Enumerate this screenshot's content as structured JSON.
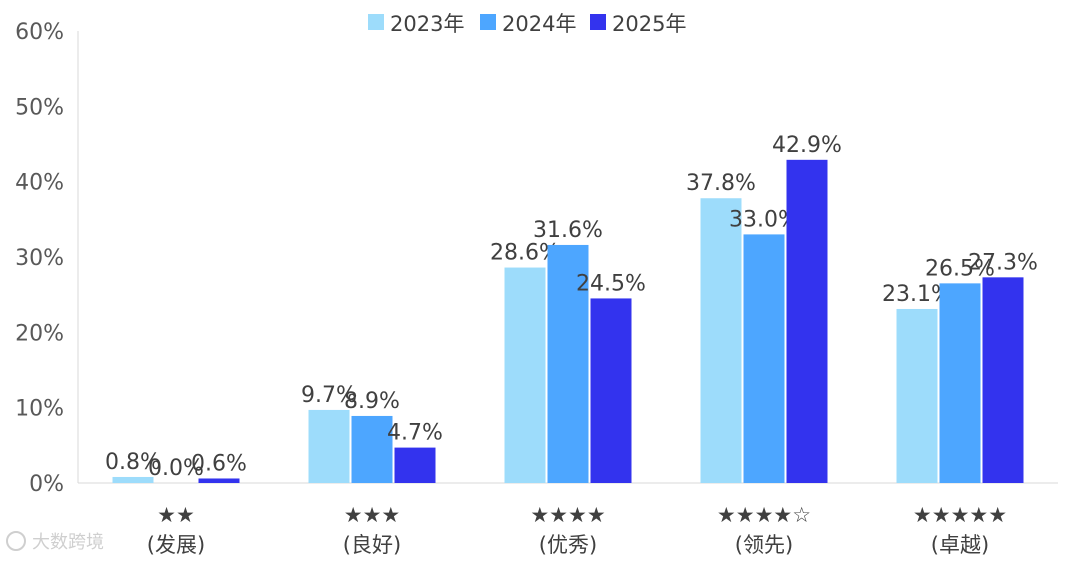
{
  "chart_data": {
    "type": "bar",
    "categories": [
      {
        "stars": "★★",
        "name": "(发展)"
      },
      {
        "stars": "★★★",
        "name": "(良好)"
      },
      {
        "stars": "★★★★",
        "name": "(优秀)"
      },
      {
        "stars": "★★★★☆",
        "name": "(领先)"
      },
      {
        "stars": "★★★★★",
        "name": "(卓越)"
      }
    ],
    "series": [
      {
        "name": "2023年",
        "color": "#9ddcfb",
        "values": [
          0.8,
          9.7,
          28.6,
          37.8,
          23.1
        ],
        "labels": [
          "0.8%",
          "9.7%",
          "28.6%",
          "37.8%",
          "23.1%"
        ]
      },
      {
        "name": "2024年",
        "color": "#4da6ff",
        "values": [
          0.0,
          8.9,
          31.6,
          33.0,
          26.5
        ],
        "labels": [
          "0.0%",
          "8.9%",
          "31.6%",
          "33.0%",
          "26.5%"
        ]
      },
      {
        "name": "2025年",
        "color": "#3333ee",
        "values": [
          0.6,
          4.7,
          24.5,
          42.9,
          27.3
        ],
        "labels": [
          "0.6%",
          "4.7%",
          "24.5%",
          "42.9%",
          "27.3%"
        ]
      }
    ],
    "ylim": [
      0,
      60
    ],
    "yticks": [
      "0%",
      "10%",
      "20%",
      "30%",
      "40%",
      "50%",
      "60%"
    ],
    "legend_position": "top",
    "grid": false
  },
  "watermark": {
    "text": "大数跨境",
    "icon": "logo-icon"
  }
}
